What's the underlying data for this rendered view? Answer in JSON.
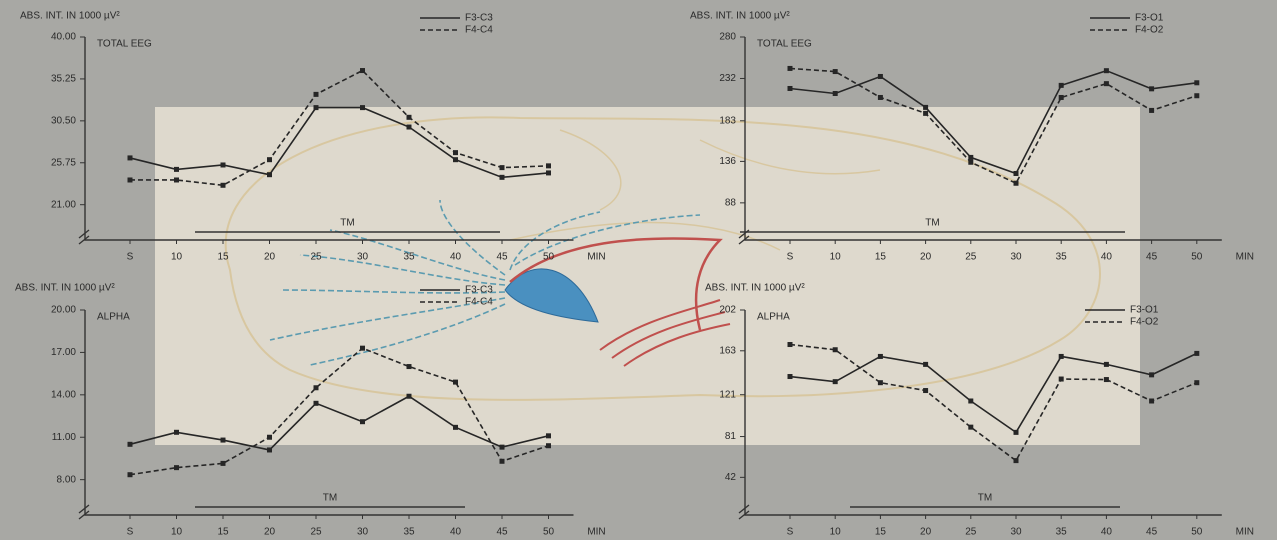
{
  "chart_data": [
    {
      "type": "line",
      "title": "ABS. INT. IN 1000 µV²",
      "subtitle": "TOTAL EEG",
      "categories": [
        "S",
        "10",
        "15",
        "20",
        "25",
        "30",
        "35",
        "40",
        "45",
        "50"
      ],
      "x_unit": "MIN",
      "annotation": "TM",
      "series": [
        {
          "name": "F3-C3",
          "color": "#262626",
          "style": "solid",
          "values": [
            26.3,
            25.0,
            25.5,
            24.4,
            32.0,
            32.0,
            29.8,
            26.1,
            24.1,
            24.6
          ]
        },
        {
          "name": "F4-C4",
          "color": "#262626",
          "style": "dashed",
          "values": [
            23.8,
            23.8,
            23.2,
            26.1,
            33.5,
            36.2,
            30.9,
            26.9,
            25.2,
            25.4
          ]
        }
      ],
      "ylim": [
        17,
        40
      ],
      "yticks": [
        {
          "value": 21,
          "label": "21.00"
        },
        {
          "value": 25.75,
          "label": "25.75"
        },
        {
          "value": 30.5,
          "label": "30.50"
        },
        {
          "value": 35.25,
          "label": "35.25"
        },
        {
          "value": 40,
          "label": "40.00"
        }
      ]
    },
    {
      "type": "line",
      "title": "ABS. INT. IN 1000 µV²",
      "subtitle": "TOTAL EEG",
      "categories": [
        "S",
        "10",
        "15",
        "20",
        "25",
        "30",
        "35",
        "40",
        "45",
        "50"
      ],
      "x_unit": "MIN",
      "annotation": "TM",
      "series": [
        {
          "name": "F3-O1",
          "color": "#262626",
          "style": "solid",
          "values": [
            220.4,
            214.6,
            234.3,
            198.5,
            140.6,
            122,
            224,
            241,
            220,
            227
          ]
        },
        {
          "name": "F4-O2",
          "color": "#262626",
          "style": "dashed",
          "values": [
            243.6,
            240,
            210,
            191.6,
            135,
            110.7,
            210,
            226,
            195,
            212
          ]
        }
      ],
      "ylim": [
        45,
        280
      ],
      "yticks": [
        88,
        136,
        183,
        232,
        280
      ]
    },
    {
      "type": "line",
      "title": "ABS. INT. IN 1000 µV²",
      "subtitle": "ALPHA",
      "categories": [
        "S",
        "10",
        "15",
        "20",
        "25",
        "30",
        "35",
        "40",
        "45",
        "50"
      ],
      "x_unit": "MIN",
      "annotation": "TM",
      "series": [
        {
          "name": "F3-C3",
          "color": "#262626",
          "style": "solid",
          "values": [
            10.5,
            11.35,
            10.8,
            10.1,
            13.4,
            12.1,
            13.9,
            11.7,
            10.3,
            11.1
          ]
        },
        {
          "name": "F4-C4",
          "color": "#262626",
          "style": "dashed",
          "values": [
            8.35,
            8.85,
            9.15,
            11.0,
            14.5,
            17.3,
            16.0,
            14.9,
            9.3,
            10.4
          ]
        }
      ],
      "ylim": [
        5.5,
        20
      ],
      "yticks": [
        {
          "value": 8,
          "label": "8.00"
        },
        {
          "value": 11,
          "label": "11.00"
        },
        {
          "value": 14,
          "label": "14.00"
        },
        {
          "value": 17,
          "label": "17.00"
        },
        {
          "value": 20,
          "label": "20.00"
        }
      ]
    },
    {
      "type": "line",
      "title": "ABS. INT. IN 1000 µV²",
      "subtitle": "ALPHA",
      "categories": [
        "S",
        "10",
        "15",
        "20",
        "25",
        "30",
        "35",
        "40",
        "45",
        "50"
      ],
      "x_unit": "MIN",
      "annotation": "TM",
      "series": [
        {
          "name": "F3-O1",
          "color": "#262626",
          "style": "solid",
          "values": [
            138.4,
            133.5,
            157.6,
            150,
            115,
            85,
            157.6,
            150,
            140,
            160.5
          ]
        },
        {
          "name": "F4-O2",
          "color": "#262626",
          "style": "dashed",
          "values": [
            169,
            164,
            132.5,
            125,
            90,
            58,
            136,
            135.5,
            115,
            132.5
          ]
        }
      ],
      "ylim": [
        6,
        202
      ],
      "yticks": [
        42,
        81,
        121,
        163,
        202
      ]
    }
  ]
}
